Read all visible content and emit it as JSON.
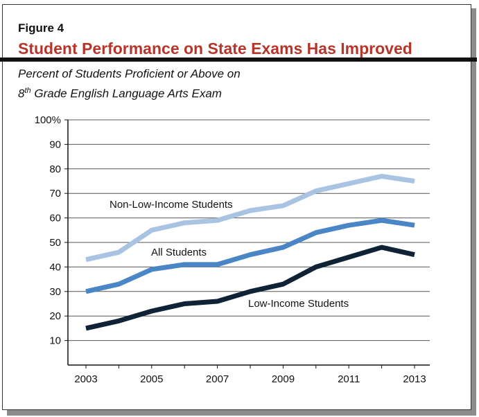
{
  "figure_label": "Figure 4",
  "title": "Student Performance on State Exams Has Improved",
  "subtitle": {
    "line1": "Percent of Students Proficient or Above on",
    "line2_num": "8",
    "line2_sup": "th",
    "line2_rest": " Grade English Language Arts Exam"
  },
  "chart_data": {
    "type": "line",
    "x": [
      2003,
      2004,
      2005,
      2006,
      2007,
      2008,
      2009,
      2010,
      2011,
      2012,
      2013
    ],
    "x_tick_labels": [
      "2003",
      "2005",
      "2007",
      "2009",
      "2011",
      "2013"
    ],
    "y_tick_labels": [
      "10",
      "20",
      "30",
      "40",
      "50",
      "60",
      "70",
      "80",
      "90",
      "100%"
    ],
    "ylim": [
      0,
      100
    ],
    "grid": true,
    "series": [
      {
        "name": "Non-Low-Income Students",
        "color": "#a9c3e3",
        "values": [
          43,
          46,
          55,
          58,
          59,
          63,
          65,
          71,
          74,
          77,
          75
        ]
      },
      {
        "name": "All Students",
        "color": "#4a86c5",
        "values": [
          30,
          33,
          39,
          41,
          41,
          45,
          48,
          54,
          57,
          59,
          57
        ]
      },
      {
        "name": "Low-Income Students",
        "color": "#0f2236",
        "values": [
          15,
          18,
          22,
          25,
          26,
          30,
          33,
          40,
          44,
          48,
          45
        ]
      }
    ]
  }
}
